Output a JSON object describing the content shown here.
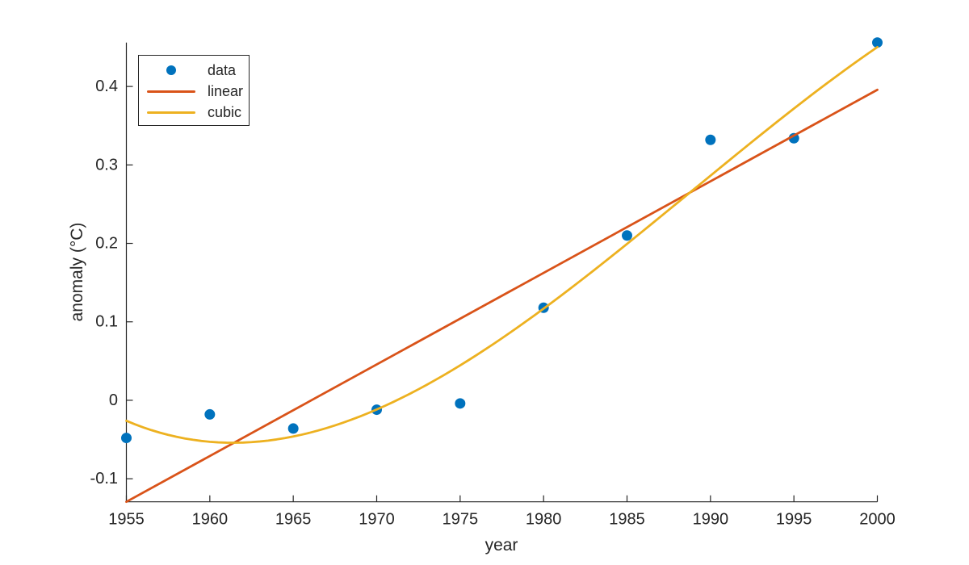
{
  "figure": {
    "background": "#ffffff",
    "text_color": "#262626"
  },
  "chart_data": {
    "type": "scatter",
    "title": "",
    "xlabel": "year",
    "ylabel": "anomaly (°C)",
    "x": [
      1955,
      1960,
      1965,
      1970,
      1975,
      1980,
      1985,
      1990,
      1995,
      2000
    ],
    "series": [
      {
        "name": "data",
        "type": "scatter",
        "color": "#0072BD",
        "values": [
          -0.048,
          -0.018,
          -0.036,
          -0.012,
          -0.004,
          0.118,
          0.21,
          0.332,
          0.334,
          0.456
        ]
      },
      {
        "name": "linear",
        "type": "polyfit",
        "degree": 1,
        "color": "#D95319"
      },
      {
        "name": "cubic",
        "type": "polyfit",
        "degree": 3,
        "color": "#EDB120"
      }
    ],
    "xlim": [
      1955,
      2000
    ],
    "ylim": [
      -0.1294,
      0.456
    ],
    "xticks": [
      1955,
      1960,
      1965,
      1970,
      1975,
      1980,
      1985,
      1990,
      1995,
      2000
    ],
    "yticks": [
      -0.1,
      0,
      0.1,
      0.2,
      0.3,
      0.4
    ],
    "grid": false,
    "box": false,
    "tick_dir": "in",
    "legend": {
      "position": "northwest",
      "entries": [
        {
          "label": "data",
          "marker": "dot",
          "color": "#0072BD"
        },
        {
          "label": "linear",
          "marker": "line",
          "color": "#D95319"
        },
        {
          "label": "cubic",
          "marker": "line",
          "color": "#EDB120"
        }
      ]
    }
  }
}
